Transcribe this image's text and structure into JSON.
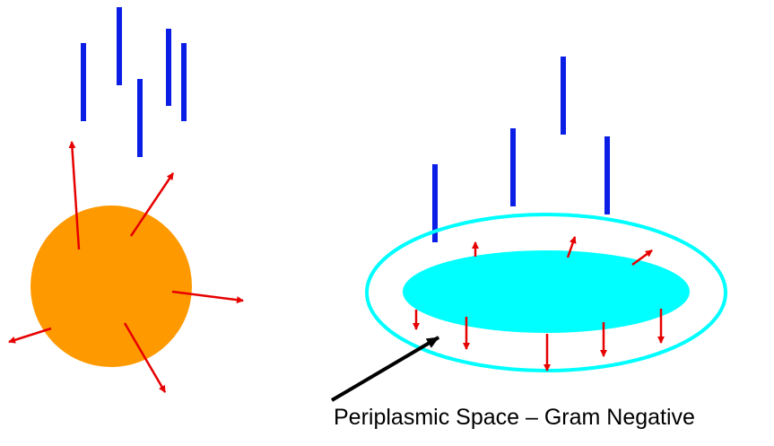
{
  "caption": "Periplasmic Space – Gram Negative",
  "colors": {
    "bar": "#0a1ee6",
    "arrow": "#e60000",
    "cell_orange": "#ff9900",
    "cell_cyan": "#00ffff",
    "pointer": "#000000",
    "background": "#ffffff"
  }
}
